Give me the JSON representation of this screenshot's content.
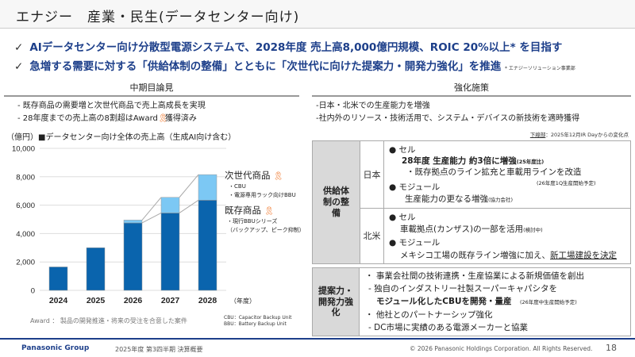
{
  "title": "エナジー　産業・民生(データセンター向け)",
  "leads": [
    {
      "check": "✓",
      "text": "AIデータセンター向け分散型電源システムで、2028年度 売上高8,000億円規模、ROIC 20%以上* を目指す"
    },
    {
      "check": "✓",
      "text": "急増する需要に対する「供給体制の整備」とともに「次世代に向けた提案力・開発力強化」を推進",
      "note": "* エナジーソリューション事業部"
    }
  ],
  "left": {
    "heading": "中期目論見",
    "bullets": [
      "- 既存商品の需要増と次世代商品で売上高成長を実現",
      "- 28年度までの売上高の8割超はAward",
      "獲得済み"
    ],
    "award_note": "Award ：  製品の開発推進・将来の受注を合意した案件",
    "abbr": [
      "CBU：Capacitor Backup Unit",
      "BBU：Battery Backup Unit"
    ]
  },
  "chart_data": {
    "type": "bar",
    "title": "■データセンター向け全体の売上高（生成AI向け含む）",
    "ylabel": "（億円）",
    "xlabel": "（年度）",
    "categories": [
      "2024",
      "2025",
      "2026",
      "2027",
      "2028"
    ],
    "series": [
      {
        "name": "既存商品",
        "values": [
          1650,
          3000,
          4750,
          5450,
          6350
        ],
        "color": "#0a64ad"
      },
      {
        "name": "次世代商品",
        "values": [
          0,
          0,
          200,
          1100,
          1800
        ],
        "color": "#7cc8f4"
      }
    ],
    "ylim": [
      0,
      10000
    ],
    "yticks": [
      "0",
      "2,000",
      "4,000",
      "6,000",
      "8,000",
      "10,000"
    ],
    "legend": {
      "next_label": "次世代商品",
      "next_items": [
        "・CBU",
        "・電源専用ラック向けBBU"
      ],
      "exist_label": "既存商品",
      "exist_items": [
        "・現行BBUシリーズ",
        "（バックアップ、ピーク抑制）"
      ]
    }
  },
  "right": {
    "heading": "強化施策",
    "bullets": [
      "-日本・北米での生産能力を増強",
      "-社内外のリソース・技術活用で、システム・デバイスの新技術を適時獲得"
    ],
    "legend_under": "下線部",
    "legend_rest": "：2025年12月IR Dayからの変化点",
    "supply_label": "供給体制の整備",
    "japan": {
      "label": "日本",
      "cell": "● セル",
      "cell_main": "28年度 生産能力 約3倍に増強",
      "cell_note": "(25年度比)",
      "cell_sub": "・既存拠点のライン拡充と車載用ラインを改造",
      "cell_sub_note": "(26年度1Q生産開始予定)",
      "module": "● モジュール",
      "module_main": "生産能力の更なる増強",
      "module_note": "(協力会社)"
    },
    "na": {
      "label": "北米",
      "cell": "● セル",
      "cell_main": "車載拠点(カンザス)の一部を活用",
      "cell_note": "(検討中)",
      "module": "● モジュール",
      "module_main": "メキシコ工場の既存ライン増強に加え、",
      "module_under": "新工場建設を決定"
    },
    "dev_label": "提案力・開発力強化",
    "dev": [
      "・ 事業会社間の技術連携・生産協業による新規価値を創出",
      " - 独自のインダストリー社製スーパーキャパシタを",
      "モジュール化したCBUを開発・量産",
      "(26年度中生産開始予定)",
      "・ 他社とのパートナーシップ強化",
      " - DC市場に実績のある電源メーカーと協業"
    ]
  },
  "footer": {
    "brand": "Panasonic Group",
    "report": "2025年度 第3四半期 決算概要",
    "copyright": "© 2026 Panasonic Holdings Corporation. All Rights Reserved.",
    "page": "18"
  }
}
